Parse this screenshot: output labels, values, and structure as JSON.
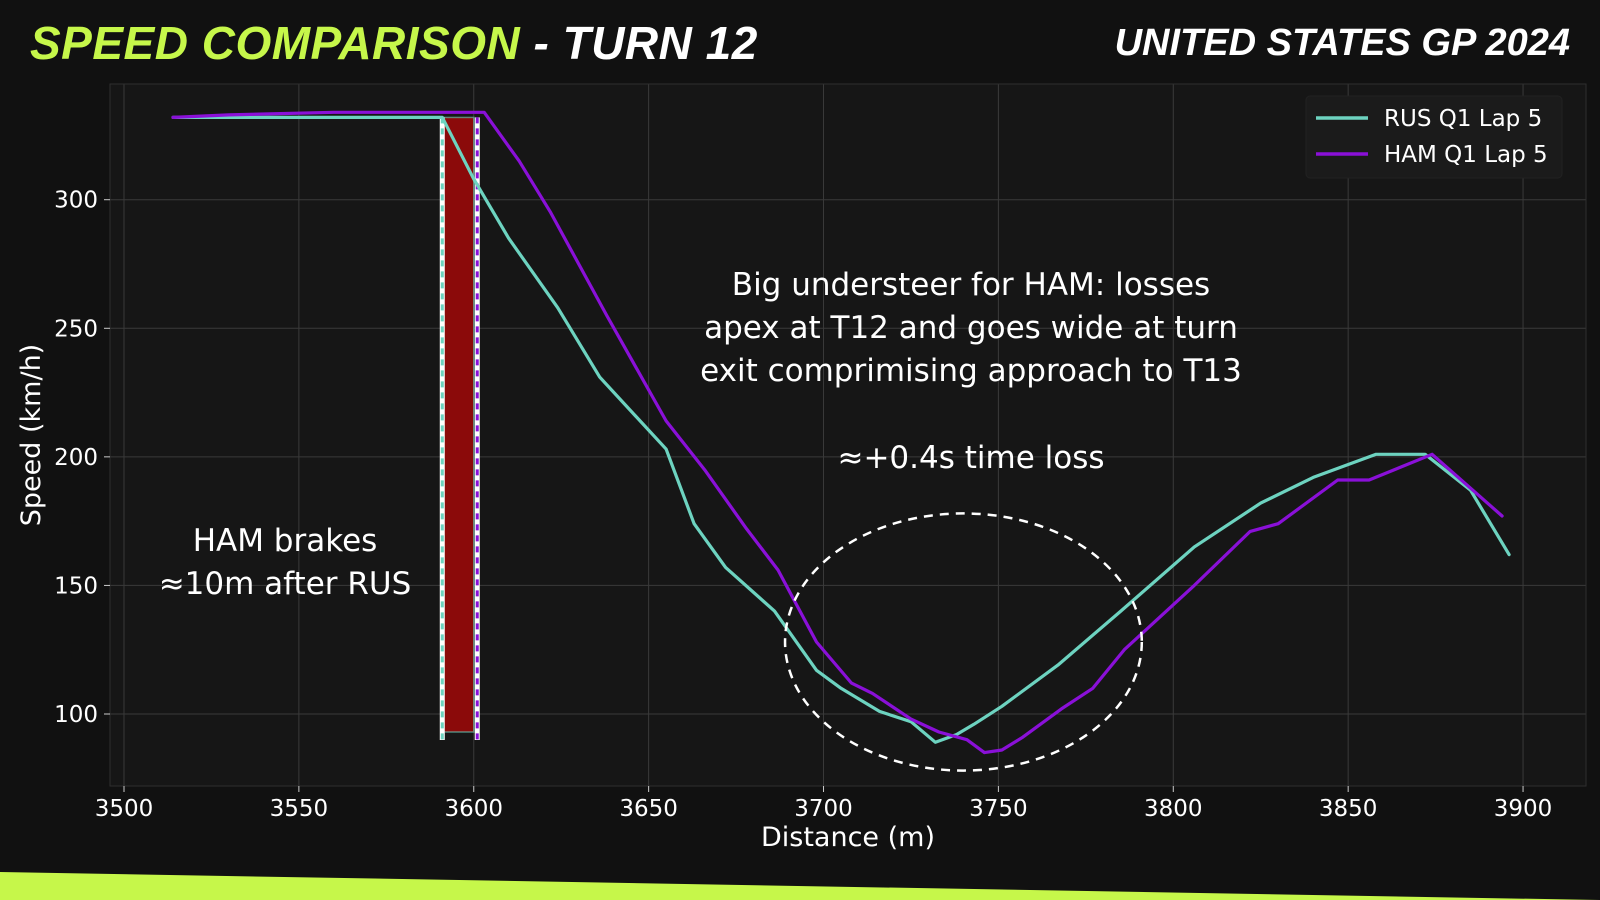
{
  "header": {
    "title_main": "SPEED COMPARISON",
    "title_suffix": " - TURN 12",
    "event": "UNITED STATES GP 2024"
  },
  "colors": {
    "accent": "#c6f74a",
    "rus": "#6dd3c0",
    "ham": "#8a10d8",
    "brake_zone": "#8b0a0a"
  },
  "chart_data": {
    "type": "line",
    "xlabel": "Distance (m)",
    "ylabel": "Speed (km/h)",
    "xlim": [
      3496,
      3918
    ],
    "ylim": [
      72,
      345
    ],
    "xticks": [
      3500,
      3550,
      3600,
      3650,
      3700,
      3750,
      3800,
      3850,
      3900
    ],
    "yticks": [
      100,
      150,
      200,
      250,
      300
    ],
    "grid": true,
    "legend_position": "top-right",
    "series": [
      {
        "name": "RUS Q1 Lap 5",
        "color": "#6dd3c0",
        "x": [
          3514,
          3520,
          3550,
          3591,
          3600,
          3610,
          3624,
          3636,
          3655,
          3663,
          3672,
          3686,
          3698,
          3705,
          3716,
          3725,
          3732,
          3738,
          3743,
          3751,
          3767,
          3785,
          3806,
          3825,
          3840,
          3858,
          3872,
          3885,
          3896
        ],
        "y": [
          332,
          332,
          332,
          332,
          308,
          285,
          258,
          231,
          203,
          174,
          157,
          140,
          117,
          110,
          101,
          97,
          89,
          92,
          96,
          103,
          119,
          140,
          165,
          182,
          192,
          201,
          201,
          187,
          162
        ]
      },
      {
        "name": "HAM Q1 Lap 5",
        "color": "#8a10d8",
        "x": [
          3514,
          3530,
          3560,
          3590,
          3603,
          3613,
          3622,
          3638,
          3655,
          3666,
          3678,
          3687,
          3698,
          3708,
          3714,
          3725,
          3733,
          3741,
          3746,
          3751,
          3757,
          3768,
          3777,
          3786,
          3806,
          3822,
          3830,
          3847,
          3856,
          3874,
          3894
        ],
        "y": [
          332,
          333,
          334,
          334,
          334,
          315,
          295,
          255,
          214,
          195,
          172,
          156,
          128,
          112,
          108,
          98,
          93,
          90,
          85,
          86,
          91,
          102,
          110,
          125,
          150,
          171,
          174,
          191,
          191,
          201,
          177
        ]
      }
    ],
    "annotations": {
      "brake_note": [
        "HAM brakes",
        "≈10m after RUS"
      ],
      "understeer_note": [
        "Big understeer for HAM: losses",
        "apex at T12 and goes wide at turn",
        "exit comprimising approach to T13"
      ],
      "time_loss": "≈+0.4s time loss"
    },
    "brake_zone": {
      "x_start": 3591,
      "x_end": 3600,
      "y_bottom": 93,
      "y_top": 332,
      "rus_brake_x": 3591,
      "ham_brake_x": 3601
    },
    "highlight_ellipse": {
      "center_x": 3740,
      "center_y": 128,
      "radius_x": 51,
      "radius_y": 50
    }
  }
}
